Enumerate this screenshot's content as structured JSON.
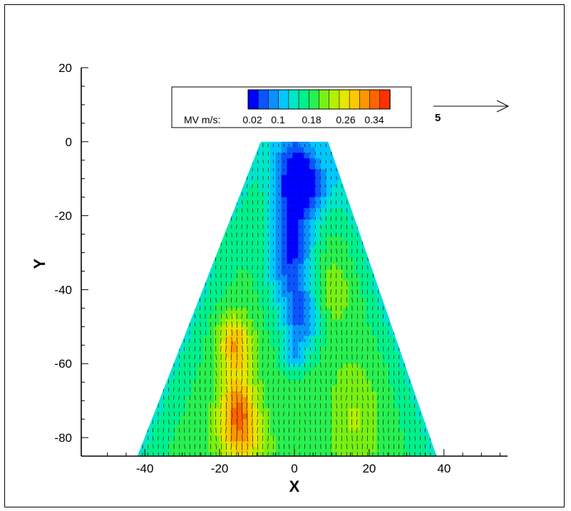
{
  "chart_data": {
    "type": "heatmap",
    "subtype": "contour with velocity vector field",
    "xlabel": "X",
    "ylabel": "Y",
    "xlim": [
      -57,
      57
    ],
    "ylim": [
      -85,
      20
    ],
    "x_ticks": [
      -40,
      -20,
      0,
      20,
      40
    ],
    "y_ticks": [
      20,
      0,
      -20,
      -40,
      -60,
      -80
    ],
    "domain_polygon": [
      [
        -9,
        0
      ],
      [
        9,
        0
      ],
      [
        38,
        -85
      ],
      [
        -42,
        -85
      ]
    ],
    "legend": {
      "variable_label": "MV m/s:",
      "tick_labels": [
        "0.02",
        "0.1",
        "0.18",
        "0.26",
        "0.34"
      ],
      "min": 0.0,
      "max": 0.38,
      "levels": 20,
      "colors": [
        "#0000ff",
        "#0a55ff",
        "#0a90ff",
        "#00c8ff",
        "#00e6c8",
        "#00f08c",
        "#28f050",
        "#78f014",
        "#b4f000",
        "#e6e600",
        "#ffc800",
        "#ff9600",
        "#ff6400",
        "#ff3200"
      ]
    },
    "reference_vector": {
      "label": "5",
      "magnitude": 5
    },
    "grid": false,
    "velocity_regions": [
      {
        "name": "low core",
        "x_range": [
          -6,
          8
        ],
        "y_range": [
          0,
          -60
        ],
        "magnitude": 0.03
      },
      {
        "name": "left high band",
        "x_range": [
          -22,
          -8
        ],
        "y_range": [
          -45,
          -85
        ],
        "magnitude": 0.33
      },
      {
        "name": "right band",
        "x_range": [
          8,
          25
        ],
        "y_range": [
          -30,
          -85
        ],
        "magnitude": 0.22
      },
      {
        "name": "edges",
        "x_range": [
          -42,
          38
        ],
        "y_range": [
          -20,
          -85
        ],
        "magnitude": 0.12
      }
    ]
  }
}
